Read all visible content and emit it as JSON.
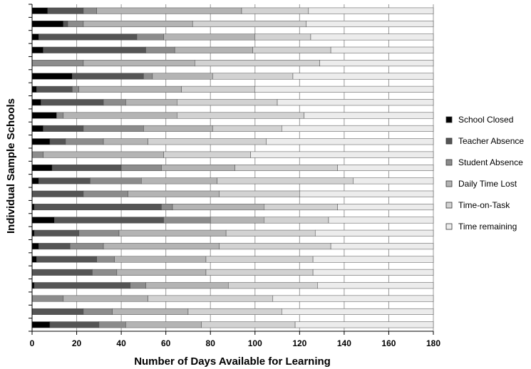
{
  "chart_data": {
    "type": "bar",
    "orientation": "horizontal",
    "stacked": true,
    "xlabel": "Number of Days Available for Learning",
    "ylabel": "Individual Sample Schools",
    "xlim": [
      0,
      180
    ],
    "x_ticks": [
      0,
      20,
      40,
      60,
      80,
      100,
      120,
      140,
      160,
      180
    ],
    "grid": "vertical",
    "legend_position": "right",
    "series": [
      {
        "name": "School Closed",
        "color": "#000000",
        "values": [
          7,
          14,
          3,
          5,
          0,
          18,
          2,
          4,
          11,
          5,
          8,
          0,
          9,
          3,
          0,
          1,
          10,
          1,
          3,
          2,
          0,
          1,
          0,
          0,
          8
        ]
      },
      {
        "name": "Teacher Absence",
        "color": "#555555",
        "values": [
          16,
          2,
          44,
          46,
          0,
          32,
          16,
          28,
          0,
          18,
          7,
          0,
          31,
          23,
          23,
          57,
          49,
          20,
          14,
          27,
          27,
          43,
          0,
          23,
          22
        ]
      },
      {
        "name": "Student Absence",
        "color": "#8c8c8c",
        "values": [
          6,
          7,
          12,
          13,
          23,
          4,
          3,
          10,
          3,
          27,
          17,
          5,
          18,
          23,
          20,
          5,
          21,
          18,
          15,
          8,
          11,
          7,
          14,
          13,
          12
        ]
      },
      {
        "name": "Daily Time Lost",
        "color": "#b4b4b4",
        "values": [
          65,
          49,
          41,
          35,
          50,
          27,
          46,
          23,
          51,
          31,
          20,
          54,
          33,
          34,
          41,
          41,
          24,
          48,
          52,
          41,
          40,
          37,
          38,
          34,
          34
        ]
      },
      {
        "name": "Time-on-Task",
        "color": "#d2d2d2",
        "values": [
          30,
          51,
          25,
          35,
          56,
          36,
          33,
          45,
          57,
          31,
          53,
          39,
          46,
          61,
          36,
          33,
          29,
          40,
          50,
          48,
          48,
          40,
          56,
          42,
          42
        ]
      },
      {
        "name": "Time remaining",
        "color": "#ececec",
        "values": [
          56,
          57,
          55,
          46,
          51,
          63,
          80,
          70,
          58,
          68,
          75,
          82,
          43,
          36,
          60,
          43,
          47,
          53,
          46,
          54,
          54,
          52,
          72,
          68,
          62
        ]
      }
    ]
  }
}
